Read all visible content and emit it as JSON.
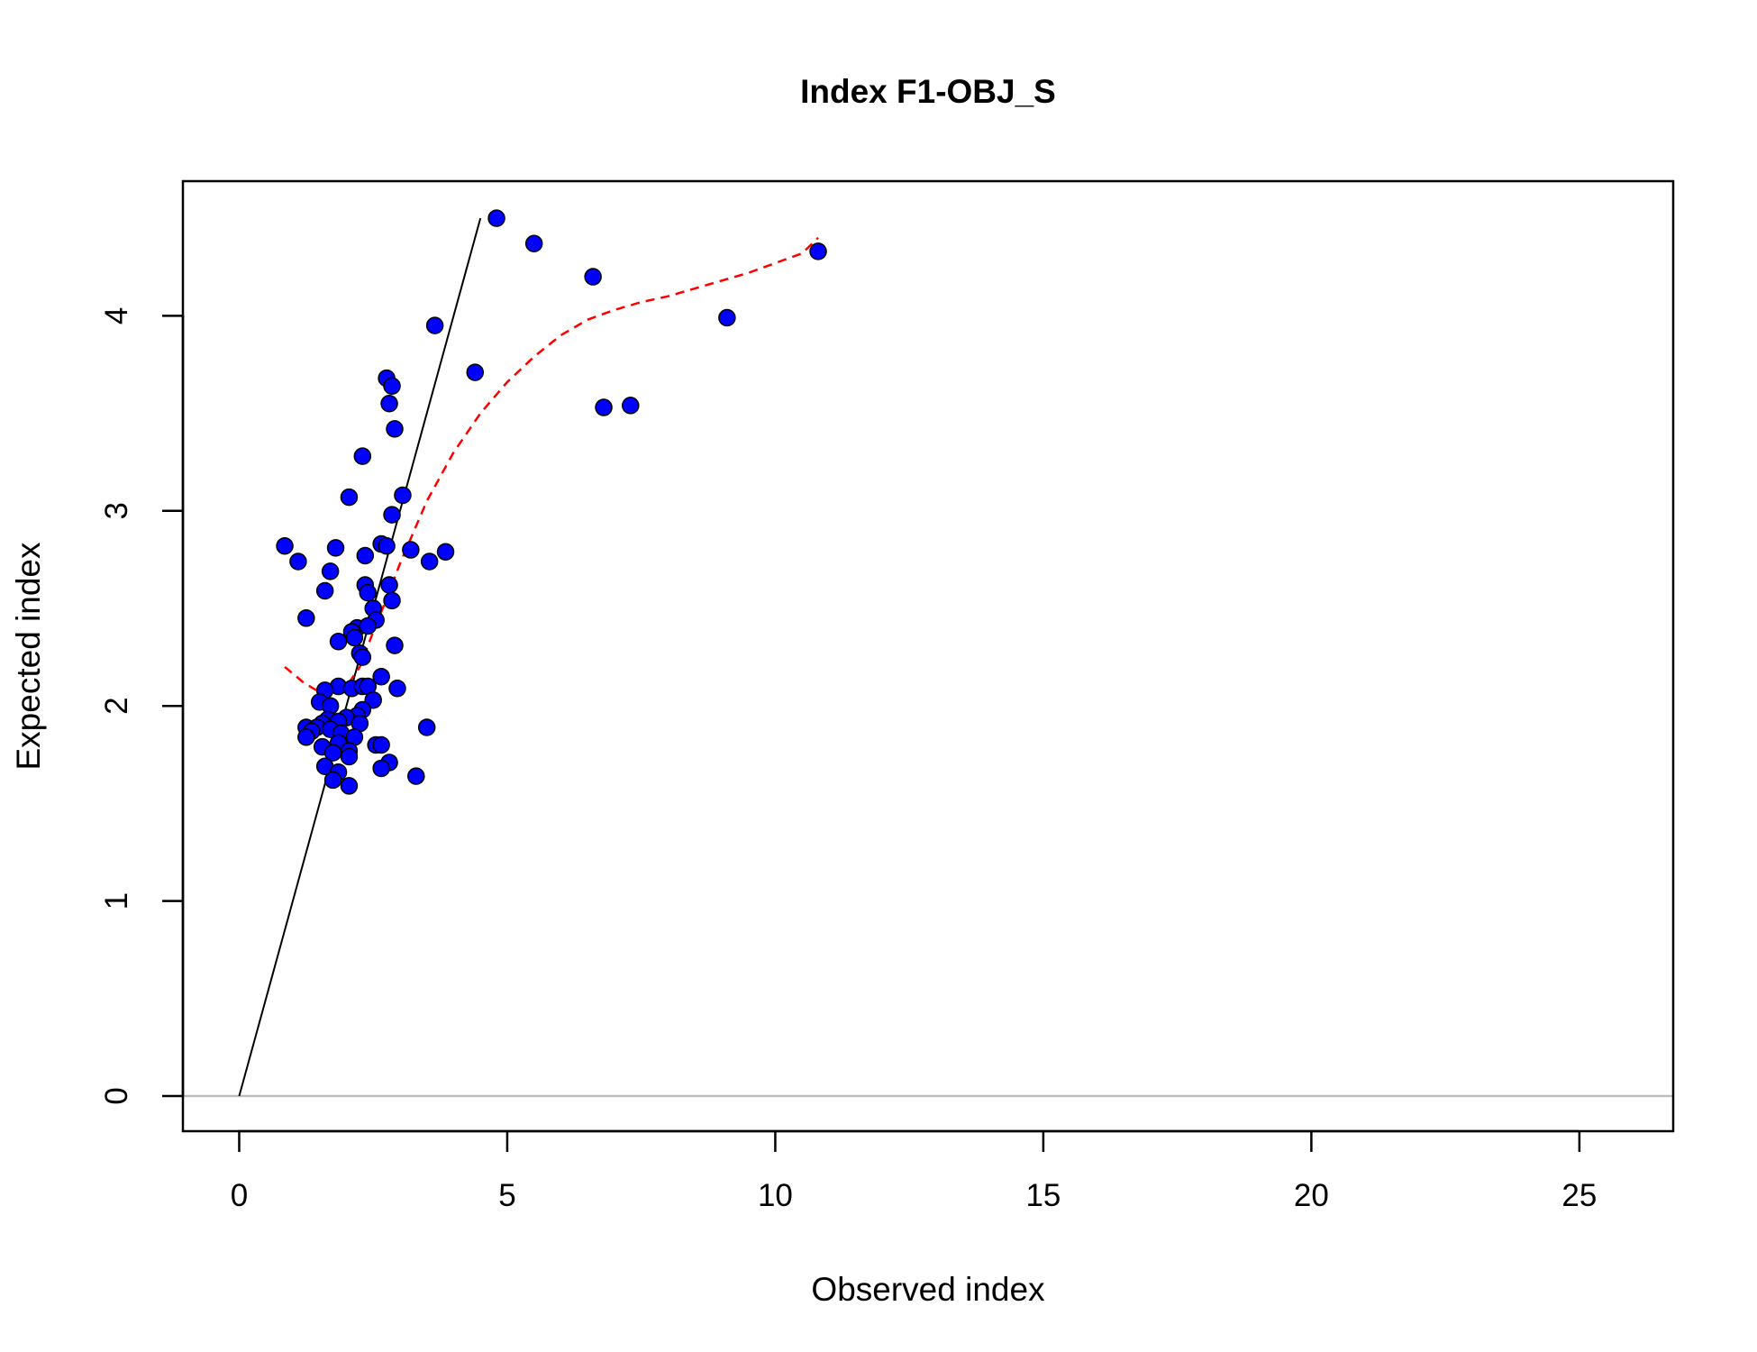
{
  "chart_data": {
    "type": "scatter",
    "title": "Index F1-OBJ_S",
    "xlabel": "Observed index",
    "ylabel": "Expected index",
    "xlim": [
      -1.05,
      26.75
    ],
    "ylim": [
      -0.18,
      4.69
    ],
    "x_ticks": [
      0,
      5,
      10,
      15,
      20,
      25
    ],
    "y_ticks": [
      0,
      1,
      2,
      3,
      4
    ],
    "x_tick_labels": [
      "0",
      "5",
      "10",
      "15",
      "20",
      "25"
    ],
    "y_tick_labels": [
      "0",
      "1",
      "2",
      "3",
      "4"
    ],
    "grid": false,
    "legend": "none",
    "point_color": "#0000ff",
    "point_edge_color": "#000000",
    "fit_line_color": "#ff0000",
    "identity_line_color": "#000000",
    "baseline_color": "#bebebe",
    "reference_lines": [
      {
        "kind": "identity",
        "x": [
          0,
          4.5
        ],
        "y": [
          0,
          4.5
        ]
      },
      {
        "kind": "horizontal",
        "y": 0
      }
    ],
    "points": [
      {
        "x": 4.8,
        "y": 4.5
      },
      {
        "x": 5.5,
        "y": 4.37
      },
      {
        "x": 10.8,
        "y": 4.33
      },
      {
        "x": 6.6,
        "y": 4.2
      },
      {
        "x": 9.1,
        "y": 3.99
      },
      {
        "x": 3.65,
        "y": 3.95
      },
      {
        "x": 4.4,
        "y": 3.71
      },
      {
        "x": 2.75,
        "y": 3.68
      },
      {
        "x": 2.85,
        "y": 3.64
      },
      {
        "x": 2.8,
        "y": 3.55
      },
      {
        "x": 6.8,
        "y": 3.53
      },
      {
        "x": 7.3,
        "y": 3.54
      },
      {
        "x": 2.9,
        "y": 3.42
      },
      {
        "x": 2.3,
        "y": 3.28
      },
      {
        "x": 3.05,
        "y": 3.08
      },
      {
        "x": 2.05,
        "y": 3.07
      },
      {
        "x": 2.85,
        "y": 2.98
      },
      {
        "x": 0.85,
        "y": 2.82
      },
      {
        "x": 1.8,
        "y": 2.81
      },
      {
        "x": 2.65,
        "y": 2.83
      },
      {
        "x": 2.75,
        "y": 2.82
      },
      {
        "x": 3.2,
        "y": 2.8
      },
      {
        "x": 3.85,
        "y": 2.79
      },
      {
        "x": 2.35,
        "y": 2.77
      },
      {
        "x": 1.1,
        "y": 2.74
      },
      {
        "x": 3.55,
        "y": 2.74
      },
      {
        "x": 1.7,
        "y": 2.69
      },
      {
        "x": 2.35,
        "y": 2.62
      },
      {
        "x": 2.8,
        "y": 2.62
      },
      {
        "x": 1.6,
        "y": 2.59
      },
      {
        "x": 2.4,
        "y": 2.58
      },
      {
        "x": 2.85,
        "y": 2.54
      },
      {
        "x": 2.5,
        "y": 2.5
      },
      {
        "x": 1.25,
        "y": 2.45
      },
      {
        "x": 2.55,
        "y": 2.44
      },
      {
        "x": 2.2,
        "y": 2.4
      },
      {
        "x": 2.1,
        "y": 2.38
      },
      {
        "x": 2.4,
        "y": 2.41
      },
      {
        "x": 2.15,
        "y": 2.35
      },
      {
        "x": 1.85,
        "y": 2.33
      },
      {
        "x": 2.9,
        "y": 2.31
      },
      {
        "x": 2.25,
        "y": 2.27
      },
      {
        "x": 2.3,
        "y": 2.25
      },
      {
        "x": 2.65,
        "y": 2.15
      },
      {
        "x": 1.85,
        "y": 2.1
      },
      {
        "x": 1.6,
        "y": 2.08
      },
      {
        "x": 2.1,
        "y": 2.09
      },
      {
        "x": 2.3,
        "y": 2.1
      },
      {
        "x": 2.4,
        "y": 2.1
      },
      {
        "x": 2.95,
        "y": 2.09
      },
      {
        "x": 2.5,
        "y": 2.03
      },
      {
        "x": 1.5,
        "y": 2.02
      },
      {
        "x": 1.7,
        "y": 2.0
      },
      {
        "x": 2.3,
        "y": 1.98
      },
      {
        "x": 2.2,
        "y": 1.95
      },
      {
        "x": 1.65,
        "y": 1.93
      },
      {
        "x": 2.0,
        "y": 1.94
      },
      {
        "x": 1.85,
        "y": 1.92
      },
      {
        "x": 1.55,
        "y": 1.91
      },
      {
        "x": 2.25,
        "y": 1.91
      },
      {
        "x": 1.25,
        "y": 1.89
      },
      {
        "x": 1.45,
        "y": 1.89
      },
      {
        "x": 1.7,
        "y": 1.88
      },
      {
        "x": 3.5,
        "y": 1.89
      },
      {
        "x": 1.35,
        "y": 1.87
      },
      {
        "x": 1.9,
        "y": 1.86
      },
      {
        "x": 2.15,
        "y": 1.84
      },
      {
        "x": 1.25,
        "y": 1.84
      },
      {
        "x": 1.85,
        "y": 1.81
      },
      {
        "x": 2.55,
        "y": 1.8
      },
      {
        "x": 2.65,
        "y": 1.8
      },
      {
        "x": 1.55,
        "y": 1.79
      },
      {
        "x": 2.05,
        "y": 1.77
      },
      {
        "x": 1.75,
        "y": 1.76
      },
      {
        "x": 2.05,
        "y": 1.74
      },
      {
        "x": 2.8,
        "y": 1.71
      },
      {
        "x": 1.6,
        "y": 1.69
      },
      {
        "x": 2.65,
        "y": 1.68
      },
      {
        "x": 1.85,
        "y": 1.66
      },
      {
        "x": 3.3,
        "y": 1.64
      },
      {
        "x": 1.75,
        "y": 1.62
      },
      {
        "x": 2.05,
        "y": 1.59
      }
    ],
    "smooth_line": {
      "style": "dashed",
      "x": [
        0.85,
        1.2,
        1.5,
        1.75,
        2.0,
        2.25,
        2.5,
        2.75,
        3.0,
        3.5,
        4.0,
        4.5,
        5.0,
        5.5,
        6.0,
        6.5,
        7.0,
        7.5,
        8.0,
        8.5,
        9.0,
        9.5,
        10.0,
        10.5,
        10.8
      ],
      "y": [
        2.2,
        2.12,
        2.07,
        2.06,
        2.1,
        2.2,
        2.38,
        2.55,
        2.73,
        3.05,
        3.3,
        3.5,
        3.66,
        3.79,
        3.9,
        3.98,
        4.03,
        4.07,
        4.1,
        4.14,
        4.18,
        4.22,
        4.27,
        4.32,
        4.4
      ]
    }
  }
}
